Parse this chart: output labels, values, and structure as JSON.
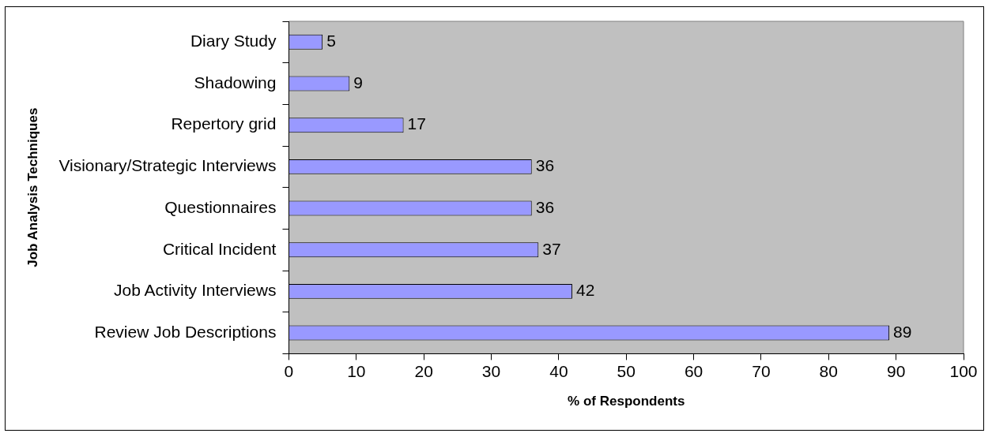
{
  "chart_data": {
    "type": "bar",
    "orientation": "horizontal",
    "xlabel": "% of Respondents",
    "ylabel": "Job Analysis Techniques",
    "categories": [
      "Diary Study",
      "Shadowing",
      "Repertory grid",
      "Visionary/Strategic Interviews",
      "Questionnaires",
      "Critical Incident",
      "Job Activity Interviews",
      "Review Job Descriptions"
    ],
    "values": [
      5,
      9,
      17,
      36,
      36,
      37,
      42,
      89
    ],
    "color": "#9999ff",
    "data_labels": true,
    "xlim": [
      0,
      100
    ],
    "xticks": [
      0,
      10,
      20,
      30,
      40,
      50,
      60,
      70,
      80,
      90,
      100
    ],
    "grid": false,
    "legend": false
  }
}
